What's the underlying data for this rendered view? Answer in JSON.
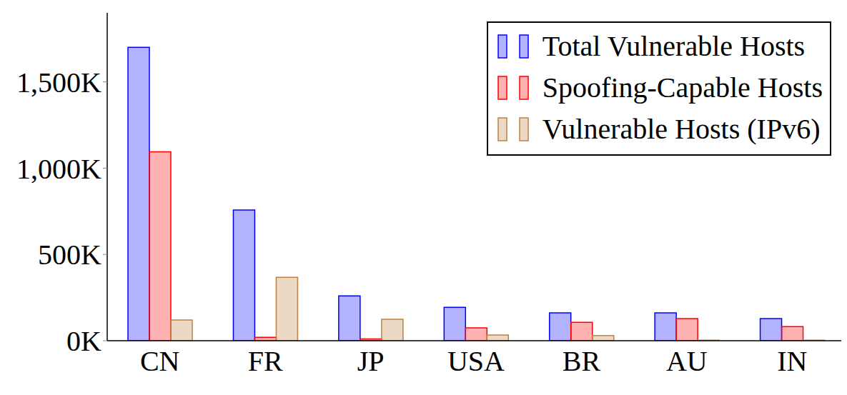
{
  "chart_data": {
    "type": "bar",
    "categories": [
      "CN",
      "FR",
      "JP",
      "USA",
      "BR",
      "AU",
      "IN"
    ],
    "series": [
      {
        "name": "Total Vulnerable Hosts",
        "color": "#0000ff",
        "values": [
          1700000,
          758000,
          260000,
          194000,
          161000,
          161000,
          128000
        ]
      },
      {
        "name": "Spoofing-Capable Hosts",
        "color": "#ff0000",
        "values": [
          1095000,
          20000,
          10000,
          74000,
          107000,
          128000,
          82000
        ]
      },
      {
        "name": "Vulnerable Hosts (IPv6)",
        "color": "#bf8040",
        "values": [
          120000,
          367000,
          124000,
          33000,
          30000,
          3000,
          3000
        ]
      }
    ],
    "ylim": [
      0,
      1900000
    ],
    "yticks": [
      {
        "value": 0,
        "label": "0K"
      },
      {
        "value": 500000,
        "label": "500K"
      },
      {
        "value": 1000000,
        "label": "1,000K"
      },
      {
        "value": 1500000,
        "label": "1,500K"
      }
    ],
    "grid": false,
    "legend": "upper right"
  }
}
